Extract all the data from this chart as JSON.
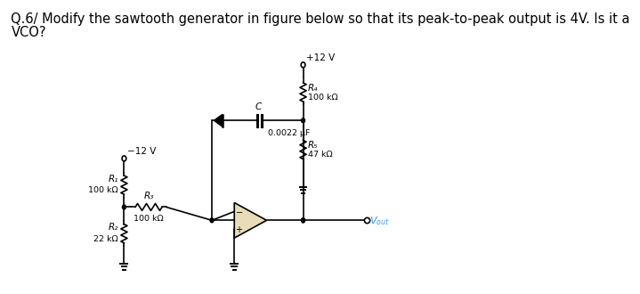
{
  "title_line1": "Q.6/ Modify the sawtooth generator in figure below so that its peak-to-peak output is 4V. Is it a",
  "title_line2": "VCO?",
  "title_fontsize": 10.5,
  "background_color": "#ffffff",
  "text_color": "#000000",
  "label_R1": "R₁",
  "label_R1_val": "100 kΩ",
  "label_R2": "R₂",
  "label_R2_val": "22 kΩ",
  "label_R3": "R₃",
  "label_R3_val": "100 kΩ",
  "label_R4": "R₄",
  "label_R4_val": "100 kΩ",
  "label_R5": "R₅",
  "label_R5_val": "47 kΩ",
  "label_C": "C",
  "label_C_val": "0.0022 μF",
  "label_Vpos": "+12 V",
  "label_Vneg": "−12 V",
  "label_Vout": "V_{out}",
  "vout_color": "#3399ff",
  "circuit_color": "#000000"
}
